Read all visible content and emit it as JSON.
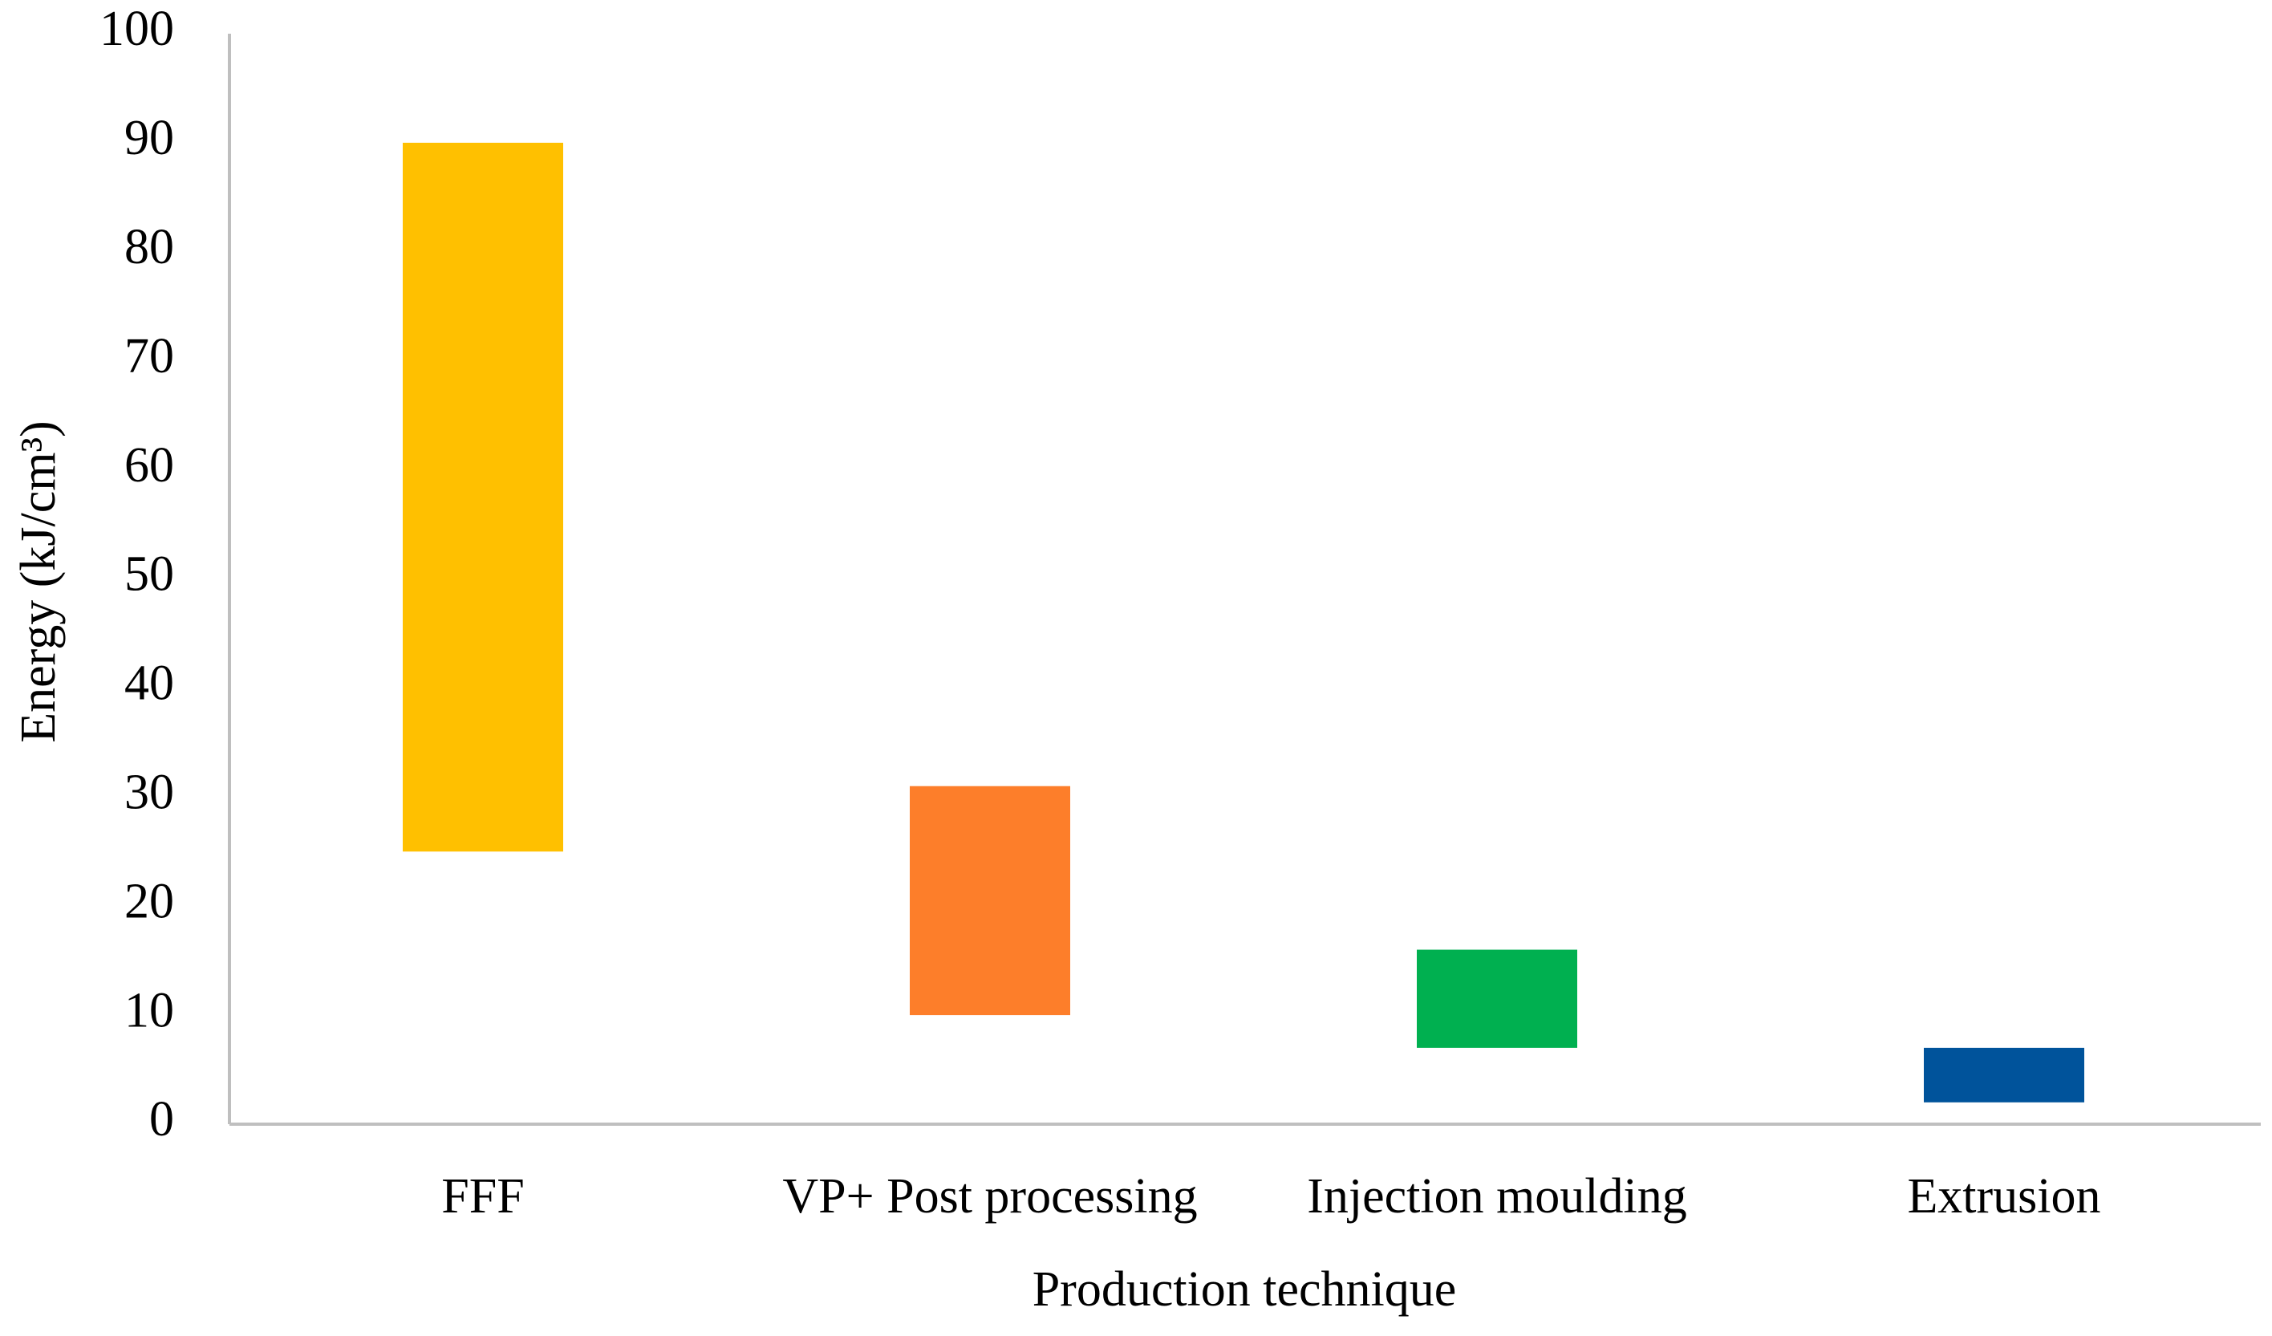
{
  "chart_data": {
    "type": "range-bar",
    "x_label": "Production technique",
    "y_label": "Energy (kJ/cm³)",
    "categories": [
      "FFF",
      "VP+ Post processing",
      "Injection moulding",
      "Extrusion"
    ],
    "low": [
      25,
      10,
      7,
      2
    ],
    "high": [
      90,
      31,
      16,
      7
    ],
    "colors": [
      "#ffc000",
      "#fd7e2a",
      "#00b050",
      "#00539b"
    ],
    "ylim": [
      0,
      100
    ],
    "yticks": [
      0,
      10,
      20,
      30,
      40,
      50,
      60,
      70,
      80,
      90,
      100
    ],
    "grid": false
  }
}
